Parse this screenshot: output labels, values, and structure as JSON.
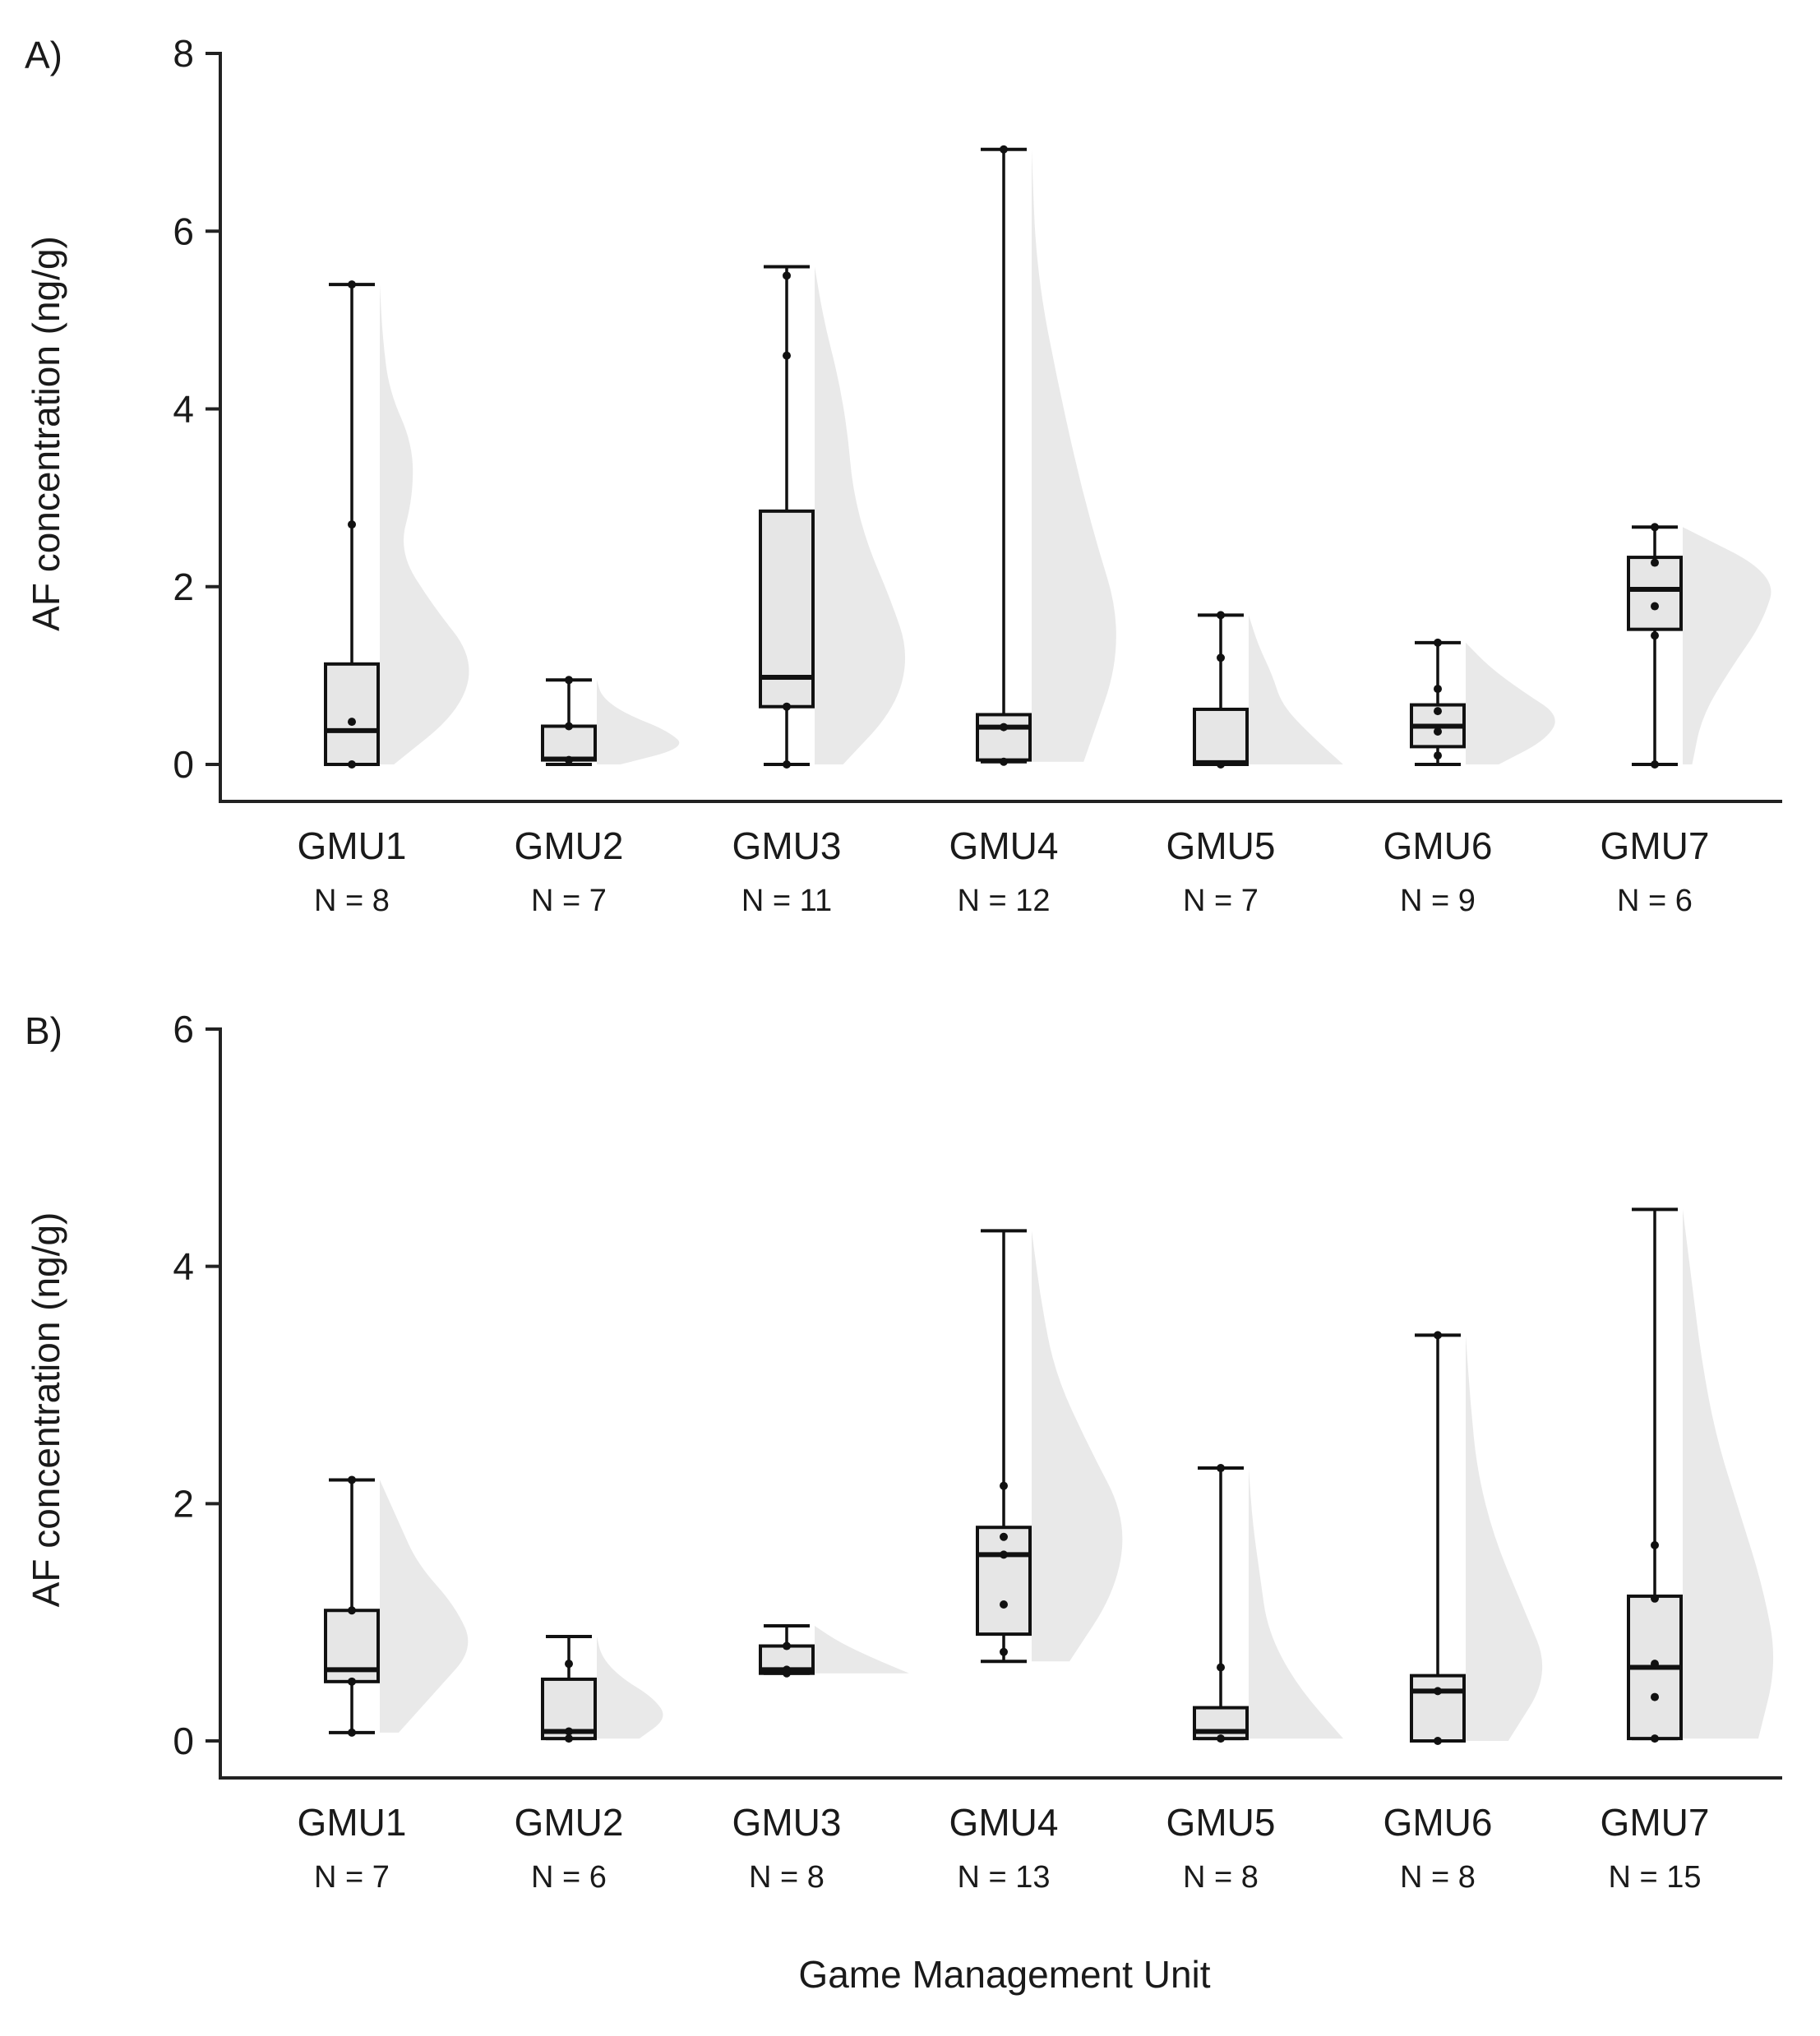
{
  "xlabel": "Game Management Unit",
  "chart_data": [
    {
      "type": "box",
      "panel_label": "A)",
      "ylabel": "AF concentration (ng/g)",
      "ylim": [
        0,
        8
      ],
      "yticks": [
        0,
        2,
        4,
        6,
        8
      ],
      "grid": false,
      "categories": [
        "GMU1",
        "GMU2",
        "GMU3",
        "GMU4",
        "GMU5",
        "GMU6",
        "GMU7"
      ],
      "n_labels": [
        "N = 8",
        "N = 7",
        "N = 11",
        "N = 12",
        "N = 7",
        "N = 9",
        "N = 6"
      ],
      "boxes": [
        {
          "min": 0,
          "q1": 0,
          "median": 0.38,
          "q3": 1.13,
          "max": 5.4,
          "points": [
            0,
            0.48,
            2.7,
            5.4
          ],
          "density": [
            0.15,
            0.85,
            1.0,
            0.55,
            0.2,
            0.35,
            0.35,
            0.1,
            0.03,
            0.0
          ]
        },
        {
          "min": 0,
          "q1": 0.05,
          "median": 0.06,
          "q3": 0.43,
          "max": 0.95,
          "points": [
            0.05,
            0.43,
            0.95
          ],
          "density": [
            0.25,
            0.95,
            0.75,
            0.3,
            0.05,
            0.0
          ]
        },
        {
          "min": 0,
          "q1": 0.65,
          "median": 0.98,
          "q3": 2.85,
          "max": 5.6,
          "points": [
            0,
            0.65,
            4.6,
            5.5
          ],
          "density": [
            0.3,
            0.85,
            1.0,
            0.8,
            0.55,
            0.4,
            0.35,
            0.25,
            0.1,
            0.0
          ]
        },
        {
          "min": 0.03,
          "q1": 0.05,
          "median": 0.42,
          "q3": 0.56,
          "max": 6.92,
          "points": [
            0.03,
            0.42,
            6.92
          ],
          "density": [
            0.55,
            1.0,
            0.6,
            0.3,
            0.05,
            0.0
          ]
        },
        {
          "min": 0,
          "q1": 0,
          "median": 0.02,
          "q3": 0.62,
          "max": 1.68,
          "points": [
            0,
            1.2,
            1.68
          ],
          "density": [
            1.0,
            0.65,
            0.35,
            0.25,
            0.1,
            0.0
          ]
        },
        {
          "min": 0,
          "q1": 0.2,
          "median": 0.43,
          "q3": 0.67,
          "max": 1.37,
          "points": [
            0.1,
            0.37,
            0.6,
            0.85,
            1.37
          ],
          "density": [
            0.35,
            0.85,
            1.0,
            0.6,
            0.25,
            0.0
          ]
        },
        {
          "min": 0,
          "q1": 1.52,
          "median": 1.97,
          "q3": 2.33,
          "max": 2.67,
          "points": [
            0,
            1.45,
            1.78,
            2.27,
            2.67
          ],
          "density": [
            0.1,
            0.2,
            0.5,
            0.85,
            1.0,
            0.0
          ]
        }
      ]
    },
    {
      "type": "box",
      "panel_label": "B)",
      "ylabel": "AF concentration (ng/g)",
      "ylim": [
        0,
        6
      ],
      "yticks": [
        0,
        2,
        4,
        6
      ],
      "grid": false,
      "categories": [
        "GMU1",
        "GMU2",
        "GMU3",
        "GMU4",
        "GMU5",
        "GMU6",
        "GMU7"
      ],
      "n_labels": [
        "N = 7",
        "N = 6",
        "N = 8",
        "N = 13",
        "N = 8",
        "N = 8",
        "N = 15"
      ],
      "boxes": [
        {
          "min": 0.07,
          "q1": 0.5,
          "median": 0.6,
          "q3": 1.1,
          "max": 2.2,
          "points": [
            0.07,
            0.5,
            1.1,
            2.2
          ],
          "density": [
            0.2,
            0.6,
            1.0,
            0.8,
            0.4,
            0.2,
            0.0
          ]
        },
        {
          "min": 0.02,
          "q1": 0.02,
          "median": 0.08,
          "q3": 0.52,
          "max": 0.88,
          "points": [
            0.02,
            0.08,
            0.65
          ],
          "density": [
            0.45,
            0.75,
            0.6,
            0.25,
            0.05,
            0.0
          ]
        },
        {
          "min": 0.57,
          "q1": 0.57,
          "median": 0.6,
          "q3": 0.8,
          "max": 0.97,
          "points": [
            0.57,
            0.6,
            0.8
          ],
          "density": [
            1.0,
            0.6,
            0.25,
            0.0
          ]
        },
        {
          "min": 0.67,
          "q1": 0.9,
          "median": 1.57,
          "q3": 1.8,
          "max": 4.3,
          "points": [
            0.75,
            1.15,
            1.57,
            1.72,
            2.15
          ],
          "density": [
            0.4,
            0.9,
            1.0,
            0.6,
            0.25,
            0.1,
            0.0
          ]
        },
        {
          "min": 0.02,
          "q1": 0.02,
          "median": 0.08,
          "q3": 0.28,
          "max": 2.3,
          "points": [
            0.02,
            0.62,
            2.3
          ],
          "density": [
            1.0,
            0.5,
            0.2,
            0.12,
            0.04,
            0.0
          ]
        },
        {
          "min": 0,
          "q1": 0,
          "median": 0.42,
          "q3": 0.55,
          "max": 3.42,
          "points": [
            0,
            0.42,
            3.42
          ],
          "density": [
            0.45,
            0.9,
            0.6,
            0.3,
            0.12,
            0.05,
            0.0
          ]
        },
        {
          "min": 0.02,
          "q1": 0.02,
          "median": 0.62,
          "q3": 1.22,
          "max": 4.48,
          "points": [
            0.02,
            0.37,
            0.65,
            1.2,
            1.65
          ],
          "density": [
            0.8,
            1.0,
            0.85,
            0.6,
            0.35,
            0.2,
            0.1,
            0.0
          ]
        }
      ]
    }
  ]
}
